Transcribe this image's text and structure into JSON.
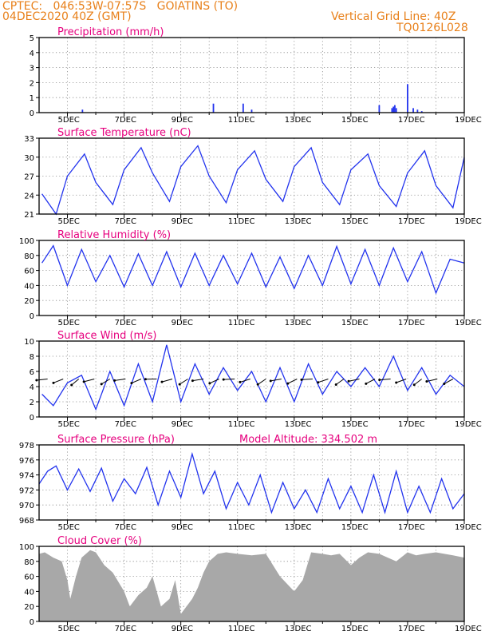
{
  "header": {
    "line1": "CPTEC:   046:53W-07:57S   GOIATINS (TO)",
    "line2": "04DEC2020 40Z (GMT)",
    "right1": "Vertical Grid Line: 40Z",
    "right2": "TQ0126L028"
  },
  "model_altitude": "Model Altitude: 334.502 m",
  "colors": {
    "header": "#e8801a",
    "title": "#e6007e",
    "series": "#2233ee",
    "cloud": "#a8a8a8",
    "arrow": "#000000"
  },
  "chart_data": [
    {
      "type": "bar",
      "title": "Precipitation (mm/h)",
      "ylim": [
        0,
        5
      ],
      "yticks": [
        "0",
        "1",
        "2",
        "3",
        "4",
        "5"
      ],
      "xtick_labels": [
        "5DEC",
        "7DEC",
        "9DEC",
        "11DEC",
        "13DEC",
        "15DEC",
        "17DEC",
        "19DEC"
      ],
      "grid": true,
      "days": [
        5.53,
        10.15,
        11.2,
        11.5,
        16.0,
        16.45,
        16.5,
        16.55,
        16.6,
        17.0,
        17.2,
        17.35,
        17.5
      ],
      "values": [
        0.2,
        0.6,
        0.6,
        0.2,
        0.5,
        0.3,
        0.4,
        0.5,
        0.3,
        1.9,
        0.3,
        0.2,
        0.1
      ]
    },
    {
      "type": "line",
      "title": "Surface Temperature (nC)",
      "ylim": [
        21,
        33
      ],
      "yticks": [
        "21",
        "24",
        "27",
        "30",
        "33"
      ],
      "xtick_labels": [
        "5DEC",
        "7DEC",
        "9DEC",
        "11DEC",
        "13DEC",
        "15DEC",
        "17DEC",
        "19DEC"
      ],
      "grid": true,
      "days": [
        4.1,
        4.6,
        5.0,
        5.6,
        6.0,
        6.6,
        7.0,
        7.6,
        8.0,
        8.6,
        9.0,
        9.6,
        10.0,
        10.6,
        11.0,
        11.6,
        12.0,
        12.6,
        13.0,
        13.6,
        14.0,
        14.6,
        15.0,
        15.6,
        16.0,
        16.6,
        17.0,
        17.6,
        18.0,
        18.6,
        19.0
      ],
      "values": [
        24.2,
        21.0,
        27.0,
        30.5,
        26.0,
        22.5,
        28.0,
        31.5,
        27.5,
        23.0,
        28.5,
        31.8,
        27.0,
        22.8,
        28.0,
        31.0,
        26.5,
        23.0,
        28.5,
        31.5,
        26.0,
        22.5,
        28.0,
        30.5,
        25.5,
        22.2,
        27.5,
        31.0,
        25.5,
        22.0,
        30.0
      ]
    },
    {
      "type": "line",
      "title": "Relative Humidity (%)",
      "ylim": [
        0,
        100
      ],
      "yticks": [
        "0",
        "20",
        "40",
        "60",
        "80",
        "100"
      ],
      "xtick_labels": [
        "5DEC",
        "7DEC",
        "9DEC",
        "11DEC",
        "13DEC",
        "15DEC",
        "17DEC",
        "19DEC"
      ],
      "grid": true,
      "days": [
        4.1,
        4.5,
        5.0,
        5.5,
        6.0,
        6.5,
        7.0,
        7.5,
        8.0,
        8.5,
        9.0,
        9.5,
        10.0,
        10.5,
        11.0,
        11.5,
        12.0,
        12.5,
        13.0,
        13.5,
        14.0,
        14.5,
        15.0,
        15.5,
        16.0,
        16.5,
        17.0,
        17.5,
        18.0,
        18.5,
        19.0
      ],
      "values": [
        70.0,
        93.0,
        40.0,
        88.0,
        45.0,
        80.0,
        38.0,
        82.0,
        40.0,
        85.0,
        38.0,
        83.0,
        40.0,
        80.0,
        42.0,
        83.0,
        38.0,
        78.0,
        36.0,
        80.0,
        40.0,
        92.0,
        42.0,
        88.0,
        40.0,
        90.0,
        45.0,
        85.0,
        30.0,
        75.0,
        70.0
      ]
    },
    {
      "type": "line",
      "title": "Surface Wind (m/s)",
      "ylim": [
        0,
        10
      ],
      "yticks": [
        "0",
        "2",
        "4",
        "6",
        "8",
        "10"
      ],
      "xtick_labels": [
        "5DEC",
        "7DEC",
        "9DEC",
        "11DEC",
        "13DEC",
        "15DEC",
        "17DEC",
        "19DEC"
      ],
      "grid": true,
      "arrow_glyph": "wind-arrow",
      "days": [
        4.1,
        4.5,
        5.0,
        5.5,
        6.0,
        6.5,
        7.0,
        7.5,
        8.0,
        8.5,
        9.0,
        9.5,
        10.0,
        10.5,
        11.0,
        11.5,
        12.0,
        12.5,
        13.0,
        13.5,
        14.0,
        14.5,
        15.0,
        15.5,
        16.0,
        16.5,
        17.0,
        17.5,
        18.0,
        18.5,
        19.0
      ],
      "values": [
        3.0,
        1.5,
        4.5,
        5.5,
        1.0,
        6.0,
        1.5,
        7.0,
        2.0,
        9.5,
        2.0,
        7.0,
        3.0,
        6.5,
        3.5,
        6.0,
        2.0,
        6.5,
        2.0,
        7.0,
        3.0,
        6.0,
        4.0,
        6.5,
        4.0,
        8.0,
        3.5,
        6.5,
        3.0,
        5.5,
        4.0
      ]
    },
    {
      "type": "line",
      "title": "Surface Pressure (hPa)",
      "ylim": [
        968,
        978
      ],
      "yticks": [
        "968",
        "970",
        "972",
        "974",
        "976",
        "978"
      ],
      "xtick_labels": [
        "5DEC",
        "7DEC",
        "9DEC",
        "11DEC",
        "13DEC",
        "15DEC",
        "17DEC",
        "19DEC"
      ],
      "grid": true,
      "days": [
        4.0,
        4.3,
        4.6,
        5.0,
        5.4,
        5.8,
        6.2,
        6.6,
        7.0,
        7.4,
        7.8,
        8.2,
        8.6,
        9.0,
        9.4,
        9.8,
        10.2,
        10.6,
        11.0,
        11.4,
        11.8,
        12.2,
        12.6,
        13.0,
        13.4,
        13.8,
        14.2,
        14.6,
        15.0,
        15.4,
        15.8,
        16.2,
        16.6,
        17.0,
        17.4,
        17.8,
        18.2,
        18.6,
        19.0
      ],
      "values": [
        972.8,
        974.5,
        975.2,
        972.0,
        974.8,
        971.8,
        974.9,
        970.5,
        973.5,
        971.5,
        975.0,
        970.0,
        974.5,
        971.0,
        976.8,
        971.5,
        974.5,
        969.5,
        973.0,
        970.0,
        974.0,
        969.0,
        973.0,
        969.5,
        972.0,
        969.0,
        973.5,
        969.5,
        972.5,
        969.0,
        974.0,
        969.0,
        974.5,
        969.0,
        972.5,
        969.0,
        973.5,
        969.5,
        971.5
      ]
    },
    {
      "type": "area",
      "title": "Cloud Cover (%)",
      "ylim": [
        0,
        100
      ],
      "yticks": [
        "0",
        "20",
        "40",
        "60",
        "80",
        "100"
      ],
      "xtick_labels": [
        "5DEC",
        "7DEC",
        "9DEC",
        "11DEC",
        "13DEC",
        "15DEC",
        "17DEC",
        "19DEC"
      ],
      "grid": true,
      "days": [
        4.0,
        4.2,
        4.5,
        4.8,
        5.0,
        5.1,
        5.3,
        5.5,
        5.8,
        6.0,
        6.3,
        6.6,
        7.0,
        7.2,
        7.5,
        7.8,
        8.0,
        8.3,
        8.6,
        8.8,
        9.0,
        9.2,
        9.4,
        9.6,
        9.8,
        10.0,
        10.3,
        10.6,
        11.0,
        11.5,
        12.0,
        12.5,
        13.0,
        13.3,
        13.6,
        14.0,
        14.3,
        14.6,
        15.0,
        15.3,
        15.6,
        16.0,
        16.3,
        16.6,
        17.0,
        17.3,
        17.6,
        18.0,
        18.3,
        18.6,
        19.0
      ],
      "values": [
        90.0,
        92.0,
        85.0,
        80.0,
        55.0,
        30.0,
        60.0,
        85.0,
        95.0,
        92.0,
        75.0,
        65.0,
        40.0,
        20.0,
        35.0,
        45.0,
        60.0,
        20.0,
        30.0,
        55.0,
        10.0,
        20.0,
        30.0,
        45.0,
        65.0,
        80.0,
        90.0,
        92.0,
        90.0,
        88.0,
        90.0,
        60.0,
        40.0,
        55.0,
        92.0,
        90.0,
        88.0,
        90.0,
        75.0,
        85.0,
        92.0,
        90.0,
        85.0,
        80.0,
        92.0,
        88.0,
        90.0,
        92.0,
        90.0,
        88.0,
        85.0
      ]
    }
  ]
}
